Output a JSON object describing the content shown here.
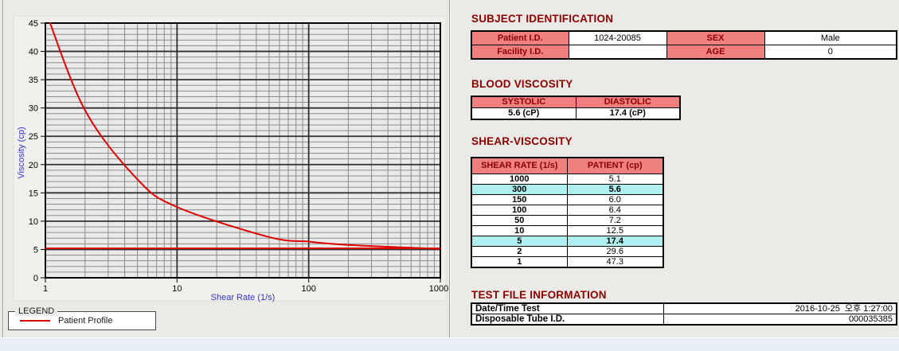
{
  "page": {
    "background": "#ECEAE6",
    "bottom_bar_color": "#E9EFF9"
  },
  "chart_data": {
    "type": "line",
    "title": "",
    "xlabel": "Shear Rate (1/s)",
    "ylabel": "Viscosity (cp)",
    "x_scale": "log",
    "xlim": [
      1,
      1000
    ],
    "ylim": [
      0,
      45
    ],
    "x_major_ticks": [
      1,
      10,
      100,
      1000
    ],
    "x_tick_labels": [
      "1",
      "10",
      "100",
      "1000"
    ],
    "y_major_tick_step": 5,
    "y_minor_tick_step": 1,
    "grid": "major+minor",
    "axis_label_color": "#3535C8",
    "plot_bg": "#EAEAEA",
    "legend_position": "below-left-outside",
    "series": [
      {
        "name": "Patient Profile",
        "color": "#DE0000",
        "width": 2,
        "smooth": true,
        "x": [
          1,
          2,
          5,
          10,
          50,
          100,
          150,
          300,
          1000
        ],
        "y": [
          47.3,
          29.6,
          17.4,
          12.5,
          7.2,
          6.4,
          6.0,
          5.6,
          5.1
        ]
      },
      {
        "name": "high-shear-reference-line",
        "color": "#DE0000",
        "width": 2,
        "smooth": false,
        "x": [
          1,
          1000
        ],
        "y": [
          5.2,
          5.2
        ]
      }
    ]
  },
  "legend": {
    "title": "LEGEND",
    "series_label": "Patient Profile",
    "line_color": "#DE0000"
  },
  "subject_identification": {
    "heading": "SUBJECT IDENTIFICATION",
    "rows": [
      {
        "label1": "Patient I.D.",
        "value1": "1024-20085",
        "label2": "SEX",
        "value2": "Male"
      },
      {
        "label1": "Facility I.D.",
        "value1": "",
        "label2": "AGE",
        "value2": "0"
      }
    ]
  },
  "blood_viscosity": {
    "heading": "BLOOD VISCOSITY",
    "headers": [
      "SYSTOLIC",
      "DIASTOLIC"
    ],
    "values": [
      "5.6 (cP)",
      "17.4 (cP)"
    ]
  },
  "shear_viscosity": {
    "heading": "SHEAR-VISCOSITY",
    "headers": [
      "SHEAR RATE (1/s)",
      "PATIENT (cp)"
    ],
    "highlight_color": "#AEEFEF",
    "rows": [
      {
        "shear_rate": "1000",
        "patient": "5.1",
        "highlight": false
      },
      {
        "shear_rate": "300",
        "patient": "5.6",
        "highlight": true
      },
      {
        "shear_rate": "150",
        "patient": "6.0",
        "highlight": false
      },
      {
        "shear_rate": "100",
        "patient": "6.4",
        "highlight": false
      },
      {
        "shear_rate": "50",
        "patient": "7.2",
        "highlight": false
      },
      {
        "shear_rate": "10",
        "patient": "12.5",
        "highlight": false
      },
      {
        "shear_rate": "5",
        "patient": "17.4",
        "highlight": true
      },
      {
        "shear_rate": "2",
        "patient": "29.6",
        "highlight": false
      },
      {
        "shear_rate": "1",
        "patient": "47.3",
        "highlight": false
      }
    ]
  },
  "test_file_information": {
    "heading": "TEST FILE INFORMATION",
    "rows": [
      {
        "label": "Date/Time Test",
        "value": "2016-10-25  오후 1:27:00"
      },
      {
        "label": "Disposable Tube I.D.",
        "value": "000035385"
      }
    ]
  },
  "colors": {
    "header_pink": "#F08080",
    "heading_maroon": "#8B0000",
    "series_red": "#DE0000",
    "axis_blue": "#3535C8"
  }
}
